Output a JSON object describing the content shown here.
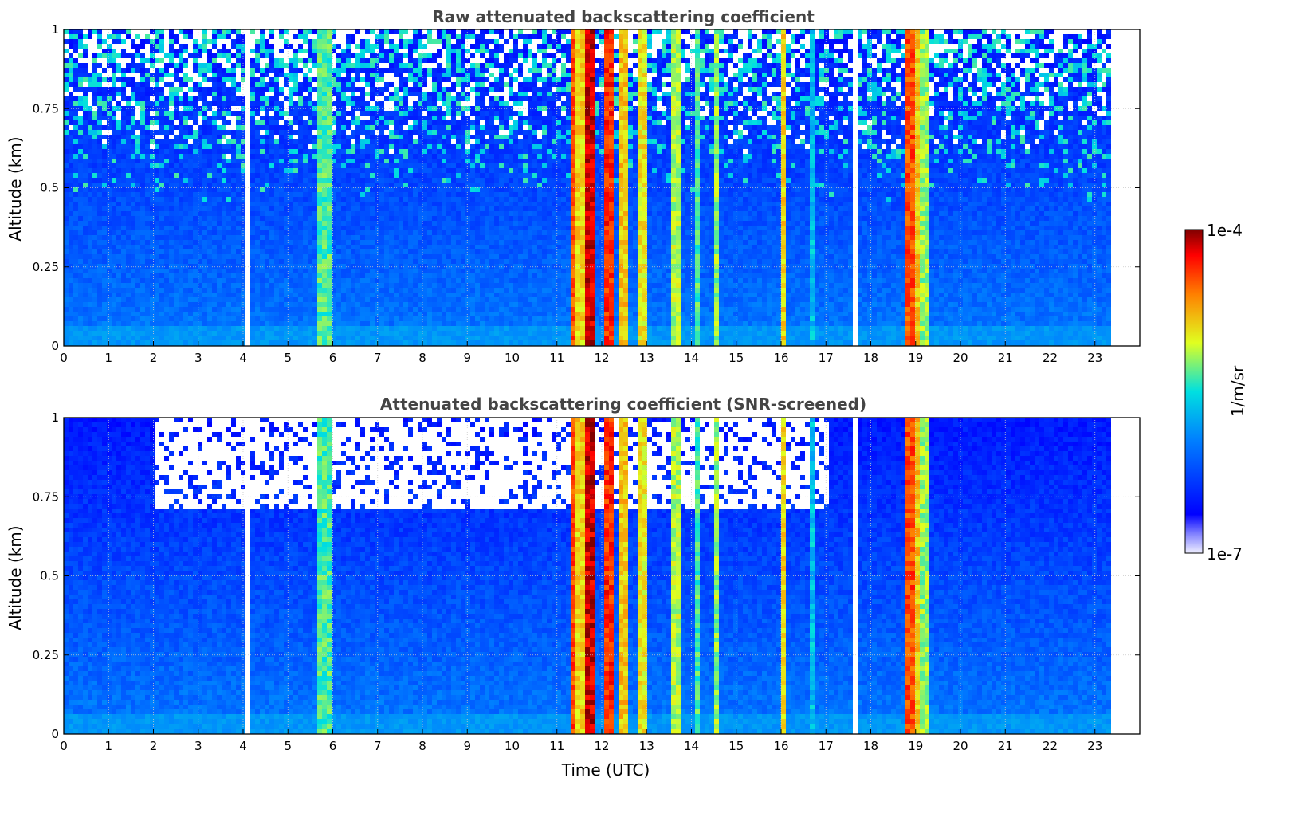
{
  "chart_data": [
    {
      "type": "heatmap",
      "title": "Raw attenuated backscattering coefficient",
      "ylabel": "Altitude (km)",
      "xlabel": "",
      "xlim": [
        0,
        24
      ],
      "ylim": [
        0,
        1
      ],
      "x_ticks": [
        "0",
        "1",
        "2",
        "3",
        "4",
        "5",
        "6",
        "7",
        "8",
        "9",
        "10",
        "11",
        "12",
        "13",
        "14",
        "15",
        "16",
        "17",
        "18",
        "19",
        "20",
        "21",
        "22",
        "23"
      ],
      "y_ticks": [
        "0",
        "0.25",
        "0.5",
        "0.75",
        "1"
      ],
      "grid": true,
      "data_extent_x": [
        0,
        23.3
      ],
      "screened": false
    },
    {
      "type": "heatmap",
      "title": "Attenuated backscattering coefficient (SNR-screened)",
      "ylabel": "Altitude (km)",
      "xlabel": "Time (UTC)",
      "xlim": [
        0,
        24
      ],
      "ylim": [
        0,
        1
      ],
      "x_ticks": [
        "0",
        "1",
        "2",
        "3",
        "4",
        "5",
        "6",
        "7",
        "8",
        "9",
        "10",
        "11",
        "12",
        "13",
        "14",
        "15",
        "16",
        "17",
        "18",
        "19",
        "20",
        "21",
        "22",
        "23"
      ],
      "y_ticks": [
        "0",
        "0.25",
        "0.5",
        "0.75",
        "1"
      ],
      "grid": true,
      "data_extent_x": [
        0,
        23.3
      ],
      "screened": true
    }
  ],
  "colorbar": {
    "label": "1/m/sr",
    "max_label": "1e-4",
    "min_label": "1e-7",
    "colormap": "jet",
    "scale": "log",
    "range": [
      1e-07,
      0.0001
    ]
  },
  "features": {
    "clear_air_level": 0.16,
    "surface_layer_level": 0.36,
    "events": [
      {
        "start": 5.6,
        "end": 5.9,
        "level": 0.55
      },
      {
        "start": 11.25,
        "end": 11.4,
        "level": 0.85
      },
      {
        "start": 11.4,
        "end": 11.55,
        "level": 0.7
      },
      {
        "start": 11.55,
        "end": 11.75,
        "level": 0.95
      },
      {
        "start": 12.05,
        "end": 12.2,
        "level": 0.88
      },
      {
        "start": 12.35,
        "end": 12.55,
        "level": 0.72
      },
      {
        "start": 12.75,
        "end": 12.95,
        "level": 0.68
      },
      {
        "start": 13.5,
        "end": 13.75,
        "level": 0.62
      },
      {
        "start": 14.0,
        "end": 14.1,
        "level": 0.55
      },
      {
        "start": 14.45,
        "end": 14.55,
        "level": 0.6
      },
      {
        "start": 15.92,
        "end": 16.02,
        "level": 0.7
      },
      {
        "start": 16.55,
        "end": 16.65,
        "level": 0.45
      },
      {
        "start": 18.75,
        "end": 18.9,
        "level": 0.85
      },
      {
        "start": 18.9,
        "end": 19.05,
        "level": 0.72
      },
      {
        "start": 19.05,
        "end": 19.25,
        "level": 0.6
      }
    ],
    "data_gaps": [
      4.05,
      17.6
    ]
  }
}
